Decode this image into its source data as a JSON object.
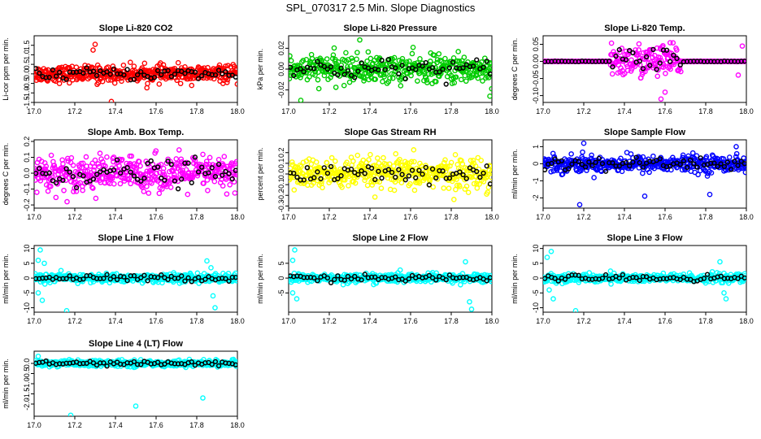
{
  "figure": {
    "title": "SPL_070317  2.5 Min. Slope Diagnostics"
  },
  "chart_data": [
    {
      "type": "scatter",
      "title": "Slope Li-820 CO2",
      "ylabel": "Li-cor ppm per min.",
      "color": "#ff0000",
      "xlim": [
        17.0,
        18.0
      ],
      "ylim": [
        -1.5,
        2.0
      ],
      "xticks": [
        "17.0",
        "17.2",
        "17.4",
        "17.6",
        "17.8",
        "18.0"
      ],
      "yticks": [
        "-1.5",
        "-1.0",
        "-0.5",
        "0.0",
        "0.5",
        "1.0",
        "1.5"
      ],
      "ytick_values": [
        -1.5,
        -1.0,
        -0.5,
        0.0,
        0.5,
        1.0,
        1.5
      ],
      "spread": 0.35,
      "outliers": [
        [
          17.29,
          1.25
        ],
        [
          17.3,
          1.55
        ],
        [
          17.31,
          -0.55
        ],
        [
          17.38,
          -1.45
        ]
      ]
    },
    {
      "type": "scatter",
      "title": "Slope Li-820 Pressure",
      "ylabel": "kPa per min.",
      "color": "#00cc00",
      "xlim": [
        17.0,
        18.0
      ],
      "ylim": [
        -0.032,
        0.032
      ],
      "xticks": [
        "17.0",
        "17.2",
        "17.4",
        "17.6",
        "17.8",
        "18.0"
      ],
      "yticks": [
        "-0.02",
        "0.00",
        "0.02"
      ],
      "ytick_values": [
        -0.02,
        0.0,
        0.02
      ],
      "spread": 0.011,
      "outliers": [
        [
          17.06,
          -0.03
        ],
        [
          17.99,
          -0.026
        ],
        [
          17.35,
          0.028
        ]
      ]
    },
    {
      "type": "scatter",
      "title": "Slope Li-820 Temp.",
      "ylabel": "degrees C per min.",
      "color": "#ff00ff",
      "xlim": [
        17.0,
        18.0
      ],
      "ylim": [
        -0.12,
        0.075
      ],
      "xticks": [
        "17.0",
        "17.2",
        "17.4",
        "17.6",
        "17.8",
        "18.0"
      ],
      "yticks": [
        "-0.10",
        "-0.05",
        "0.00",
        "0.05"
      ],
      "ytick_values": [
        -0.1,
        -0.05,
        0.0,
        0.05
      ],
      "spread": 0.0,
      "active_range": [
        17.33,
        17.68
      ],
      "active_spread": 0.04,
      "outliers": [
        [
          17.58,
          -0.11
        ],
        [
          17.6,
          -0.09
        ],
        [
          17.98,
          0.045
        ],
        [
          17.96,
          -0.04
        ]
      ]
    },
    {
      "type": "scatter",
      "title": "Slope Amb. Box Temp.",
      "ylabel": "degrees C per min.",
      "color": "#ff00ff",
      "xlim": [
        17.0,
        18.0
      ],
      "ylim": [
        -0.22,
        0.21
      ],
      "xticks": [
        "17.0",
        "17.2",
        "17.4",
        "17.6",
        "17.8",
        "18.0"
      ],
      "yticks": [
        "-0.2",
        "-0.1",
        "0.0",
        "0.1",
        "0.2"
      ],
      "ytick_values": [
        -0.2,
        -0.1,
        0.0,
        0.1,
        0.2
      ],
      "spread": 0.09,
      "outliers": []
    },
    {
      "type": "scatter",
      "title": "Slope Gas Stream RH",
      "ylabel": "percent per min.",
      "color": "#ffff00",
      "xlim": [
        17.0,
        18.0
      ],
      "ylim": [
        -0.32,
        0.32
      ],
      "xticks": [
        "17.0",
        "17.2",
        "17.4",
        "17.6",
        "17.8",
        "18.0"
      ],
      "yticks": [
        "-0.3",
        "-0.2",
        "-0.1",
        "0.0",
        "0.1",
        "0.2"
      ],
      "ytick_values": [
        -0.3,
        -0.2,
        -0.1,
        0.0,
        0.1,
        0.2
      ],
      "spread": 0.12,
      "outliers": []
    },
    {
      "type": "scatter",
      "title": "Slope Sample Flow",
      "ylabel": "ml/min per min.",
      "color": "#0000ff",
      "xlim": [
        17.0,
        18.0
      ],
      "ylim": [
        -2.6,
        1.4
      ],
      "xticks": [
        "17.0",
        "17.2",
        "17.4",
        "17.6",
        "17.8",
        "18.0"
      ],
      "yticks": [
        "-2",
        "-1",
        "0",
        "1"
      ],
      "ytick_values": [
        -2,
        -1,
        0,
        1
      ],
      "spread": 0.4,
      "outliers": [
        [
          17.2,
          1.2
        ],
        [
          17.5,
          -1.9
        ],
        [
          17.82,
          -1.8
        ],
        [
          17.18,
          -2.4
        ],
        [
          17.95,
          1.0
        ]
      ]
    },
    {
      "type": "scatter",
      "title": "Slope Line 1 Flow",
      "ylabel": "ml/min per min.",
      "color": "#00ffff",
      "xlim": [
        17.0,
        18.0
      ],
      "ylim": [
        -11.5,
        11.0
      ],
      "xticks": [
        "17.0",
        "17.2",
        "17.4",
        "17.6",
        "17.8",
        "18.0"
      ],
      "yticks": [
        "-10",
        "-5",
        "0",
        "5",
        "10"
      ],
      "ytick_values": [
        -10,
        -5,
        0,
        5,
        10
      ],
      "spread": 1.2,
      "outliers": [
        [
          17.02,
          6
        ],
        [
          17.03,
          9.5
        ],
        [
          17.05,
          5
        ],
        [
          17.02,
          -5
        ],
        [
          17.04,
          -7.5
        ],
        [
          17.16,
          -11
        ],
        [
          17.85,
          5.8
        ],
        [
          17.87,
          3.5
        ],
        [
          17.88,
          -6
        ],
        [
          17.89,
          -10
        ]
      ]
    },
    {
      "type": "scatter",
      "title": "Slope Line 2 Flow",
      "ylabel": "ml/min per min.",
      "color": "#00ffff",
      "xlim": [
        17.0,
        18.0
      ],
      "ylim": [
        -11.5,
        11.0
      ],
      "xticks": [
        "17.0",
        "17.2",
        "17.4",
        "17.6",
        "17.8",
        "18.0"
      ],
      "yticks": [
        "-5",
        "0",
        "5"
      ],
      "ytick_values": [
        -5,
        0,
        5
      ],
      "spread": 1.2,
      "outliers": [
        [
          17.02,
          6
        ],
        [
          17.03,
          9.5
        ],
        [
          17.02,
          -5
        ],
        [
          17.04,
          -7
        ],
        [
          17.87,
          5.5
        ],
        [
          17.89,
          -8
        ],
        [
          17.9,
          -10.5
        ]
      ]
    },
    {
      "type": "scatter",
      "title": "Slope Line 3 Flow",
      "ylabel": "ml/min per min.",
      "color": "#00ffff",
      "xlim": [
        17.0,
        18.0
      ],
      "ylim": [
        -11.5,
        11.0
      ],
      "xticks": [
        "17.0",
        "17.2",
        "17.4",
        "17.6",
        "17.8",
        "18.0"
      ],
      "yticks": [
        "-10",
        "-5",
        "0",
        "5",
        "10"
      ],
      "ytick_values": [
        -10,
        -5,
        0,
        5,
        10
      ],
      "spread": 1.2,
      "outliers": [
        [
          17.02,
          7
        ],
        [
          17.04,
          9
        ],
        [
          17.03,
          -4
        ],
        [
          17.05,
          -7
        ],
        [
          17.16,
          -11
        ],
        [
          17.87,
          5.5
        ],
        [
          17.89,
          -5
        ],
        [
          17.9,
          -7
        ]
      ]
    },
    {
      "type": "scatter",
      "title": "Slope Line 4 (LT) Flow",
      "ylabel": "ml/min per min.",
      "color": "#00ffff",
      "xlim": [
        17.0,
        18.0
      ],
      "ylim": [
        -2.6,
        0.6
      ],
      "xticks": [
        "17.0",
        "17.2",
        "17.4",
        "17.6",
        "17.8",
        "18.0"
      ],
      "yticks": [
        "-2.0",
        "-1.5",
        "-1.0",
        "-0.5",
        "0.0"
      ],
      "ytick_values": [
        -2.0,
        -1.5,
        -1.0,
        -0.5,
        0.0
      ],
      "spread": 0.12,
      "outliers": [
        [
          17.18,
          -2.55
        ],
        [
          17.5,
          -2.1
        ],
        [
          17.83,
          -1.7
        ],
        [
          17.02,
          0.35
        ]
      ]
    }
  ]
}
